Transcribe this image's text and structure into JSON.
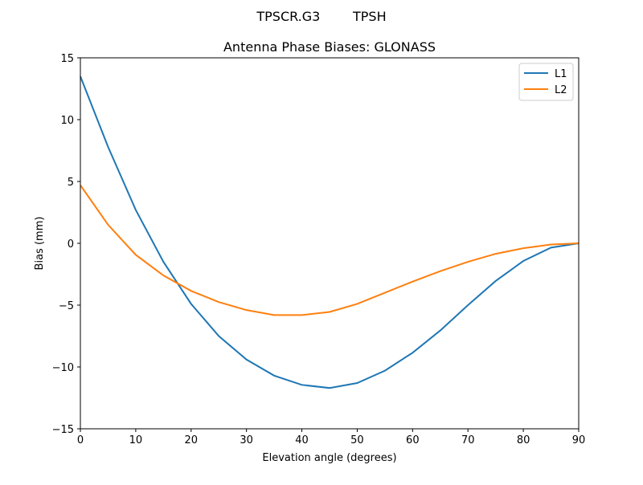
{
  "chart_data": {
    "type": "line",
    "suptitle": "TPSCR.G3        TPSH",
    "title": "Antenna Phase Biases: GLONASS",
    "xlabel": "Elevation angle (degrees)",
    "ylabel": "Bias (mm)",
    "xlim": [
      0,
      90
    ],
    "ylim": [
      -15,
      15
    ],
    "xticks": [
      0,
      10,
      20,
      30,
      40,
      50,
      60,
      70,
      80,
      90
    ],
    "yticks": [
      -15,
      -10,
      -5,
      0,
      5,
      10,
      15
    ],
    "xtick_labels": [
      "0",
      "10",
      "20",
      "30",
      "40",
      "50",
      "60",
      "70",
      "80",
      "90"
    ],
    "ytick_labels": [
      "−15",
      "−10",
      "−5",
      "0",
      "5",
      "10",
      "15"
    ],
    "grid": false,
    "legend_placement": "top-right",
    "x": [
      0,
      5,
      10,
      15,
      20,
      25,
      30,
      35,
      40,
      45,
      50,
      55,
      60,
      65,
      70,
      75,
      80,
      85,
      90
    ],
    "series": [
      {
        "name": "L1",
        "color": "#1f77b4",
        "values": [
          13.5,
          7.8,
          2.7,
          -1.5,
          -4.9,
          -7.5,
          -9.4,
          -10.7,
          -11.45,
          -11.7,
          -11.3,
          -10.3,
          -8.85,
          -7.05,
          -5.0,
          -3.05,
          -1.43,
          -0.35,
          0.0
        ]
      },
      {
        "name": "L2",
        "color": "#ff7f0e",
        "values": [
          4.7,
          1.5,
          -0.93,
          -2.6,
          -3.85,
          -4.75,
          -5.4,
          -5.8,
          -5.8,
          -5.55,
          -4.9,
          -4.0,
          -3.1,
          -2.25,
          -1.5,
          -0.85,
          -0.4,
          -0.1,
          0.0
        ]
      }
    ]
  }
}
